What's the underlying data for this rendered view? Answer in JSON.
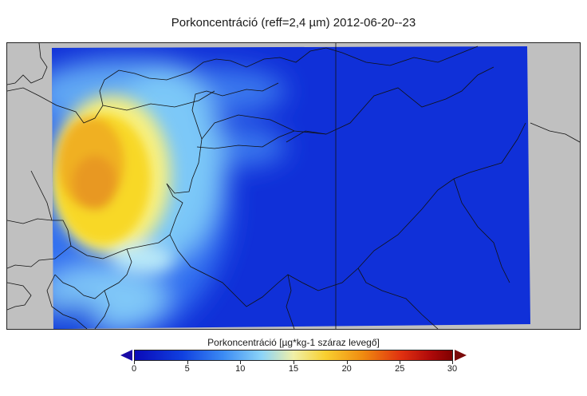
{
  "title": "Porkoncentráció (reff=2,4 µm) 2012-06-20--23",
  "colorbar": {
    "label": "Porkoncentráció [µg*kg-1 száraz levegő]",
    "min": 0,
    "max": 30,
    "ticks": [
      "0",
      "5",
      "10",
      "15",
      "20",
      "25",
      "30"
    ],
    "under_color": "#1a0aa6",
    "over_color": "#7a0a0a"
  },
  "map": {
    "background_color": "#c0c0c0",
    "field_low_color": "#1030d8",
    "field_high_color": "#f0a020"
  }
}
